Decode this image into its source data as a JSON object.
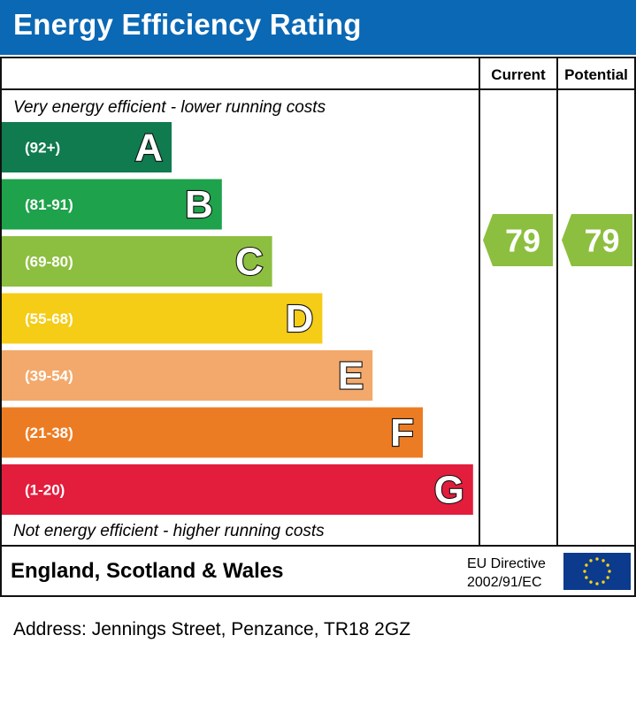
{
  "header": {
    "title": "Energy Efficiency Rating"
  },
  "columns": {
    "current": "Current",
    "potential": "Potential"
  },
  "chart_data": {
    "type": "bar",
    "title": "Energy Efficiency Rating",
    "top_note": "Very energy efficient - lower running costs",
    "bottom_note": "Not energy efficient - higher running costs",
    "bands": [
      {
        "letter": "A",
        "range": "(92+)",
        "color": "#0f7b4e"
      },
      {
        "letter": "B",
        "range": "(81-91)",
        "color": "#1ea24b"
      },
      {
        "letter": "C",
        "range": "(69-80)",
        "color": "#8cbf3f"
      },
      {
        "letter": "D",
        "range": "(55-68)",
        "color": "#f5cc16"
      },
      {
        "letter": "E",
        "range": "(39-54)",
        "color": "#f3a96b"
      },
      {
        "letter": "F",
        "range": "(21-38)",
        "color": "#ec7c23"
      },
      {
        "letter": "G",
        "range": "(1-20)",
        "color": "#e31d3c"
      }
    ],
    "current": {
      "value": 79,
      "band": "C",
      "color": "#8cbf3f"
    },
    "potential": {
      "value": 79,
      "band": "C",
      "color": "#8cbf3f"
    }
  },
  "footer": {
    "region": "England, Scotland & Wales",
    "directive_line1": "EU Directive",
    "directive_line2": "2002/91/EC",
    "flag_color": "#0c3a8c",
    "star_color": "#f7d417"
  },
  "address": "Address: Jennings Street, Penzance, TR18 2GZ"
}
